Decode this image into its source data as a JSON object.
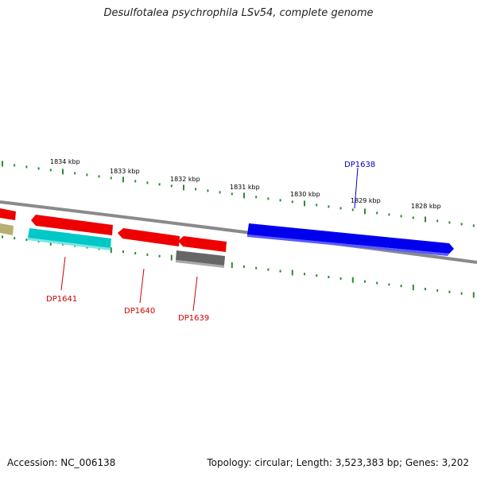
{
  "title": "Desulfotalea psychrophila LSv54, complete genome",
  "footer": {
    "accession": "Accession: NC_006138",
    "summary": "Topology: circular; Length: 3,523,383 bp; Genes: 3,202"
  },
  "colors": {
    "backbone": "#8a8a8a",
    "ticks": "#2e8b2e",
    "label_red": "#cc0000",
    "label_blue": "#0000cc"
  },
  "ticks": [
    {
      "label": "1834 kbp"
    },
    {
      "label": "1833 kbp"
    },
    {
      "label": "1832 kbp"
    },
    {
      "label": "1831 kbp"
    },
    {
      "label": "1830 kbp"
    },
    {
      "label": "1829 kbp"
    },
    {
      "label": "1828 kbp"
    }
  ],
  "genes": [
    {
      "name": "DP1638",
      "color": "#0000ee"
    },
    {
      "name": "DP1639",
      "color": "#ee0000"
    },
    {
      "name": "DP1640",
      "color": "#ee0000"
    },
    {
      "name": "DP1641",
      "color": "#ee0000"
    }
  ]
}
